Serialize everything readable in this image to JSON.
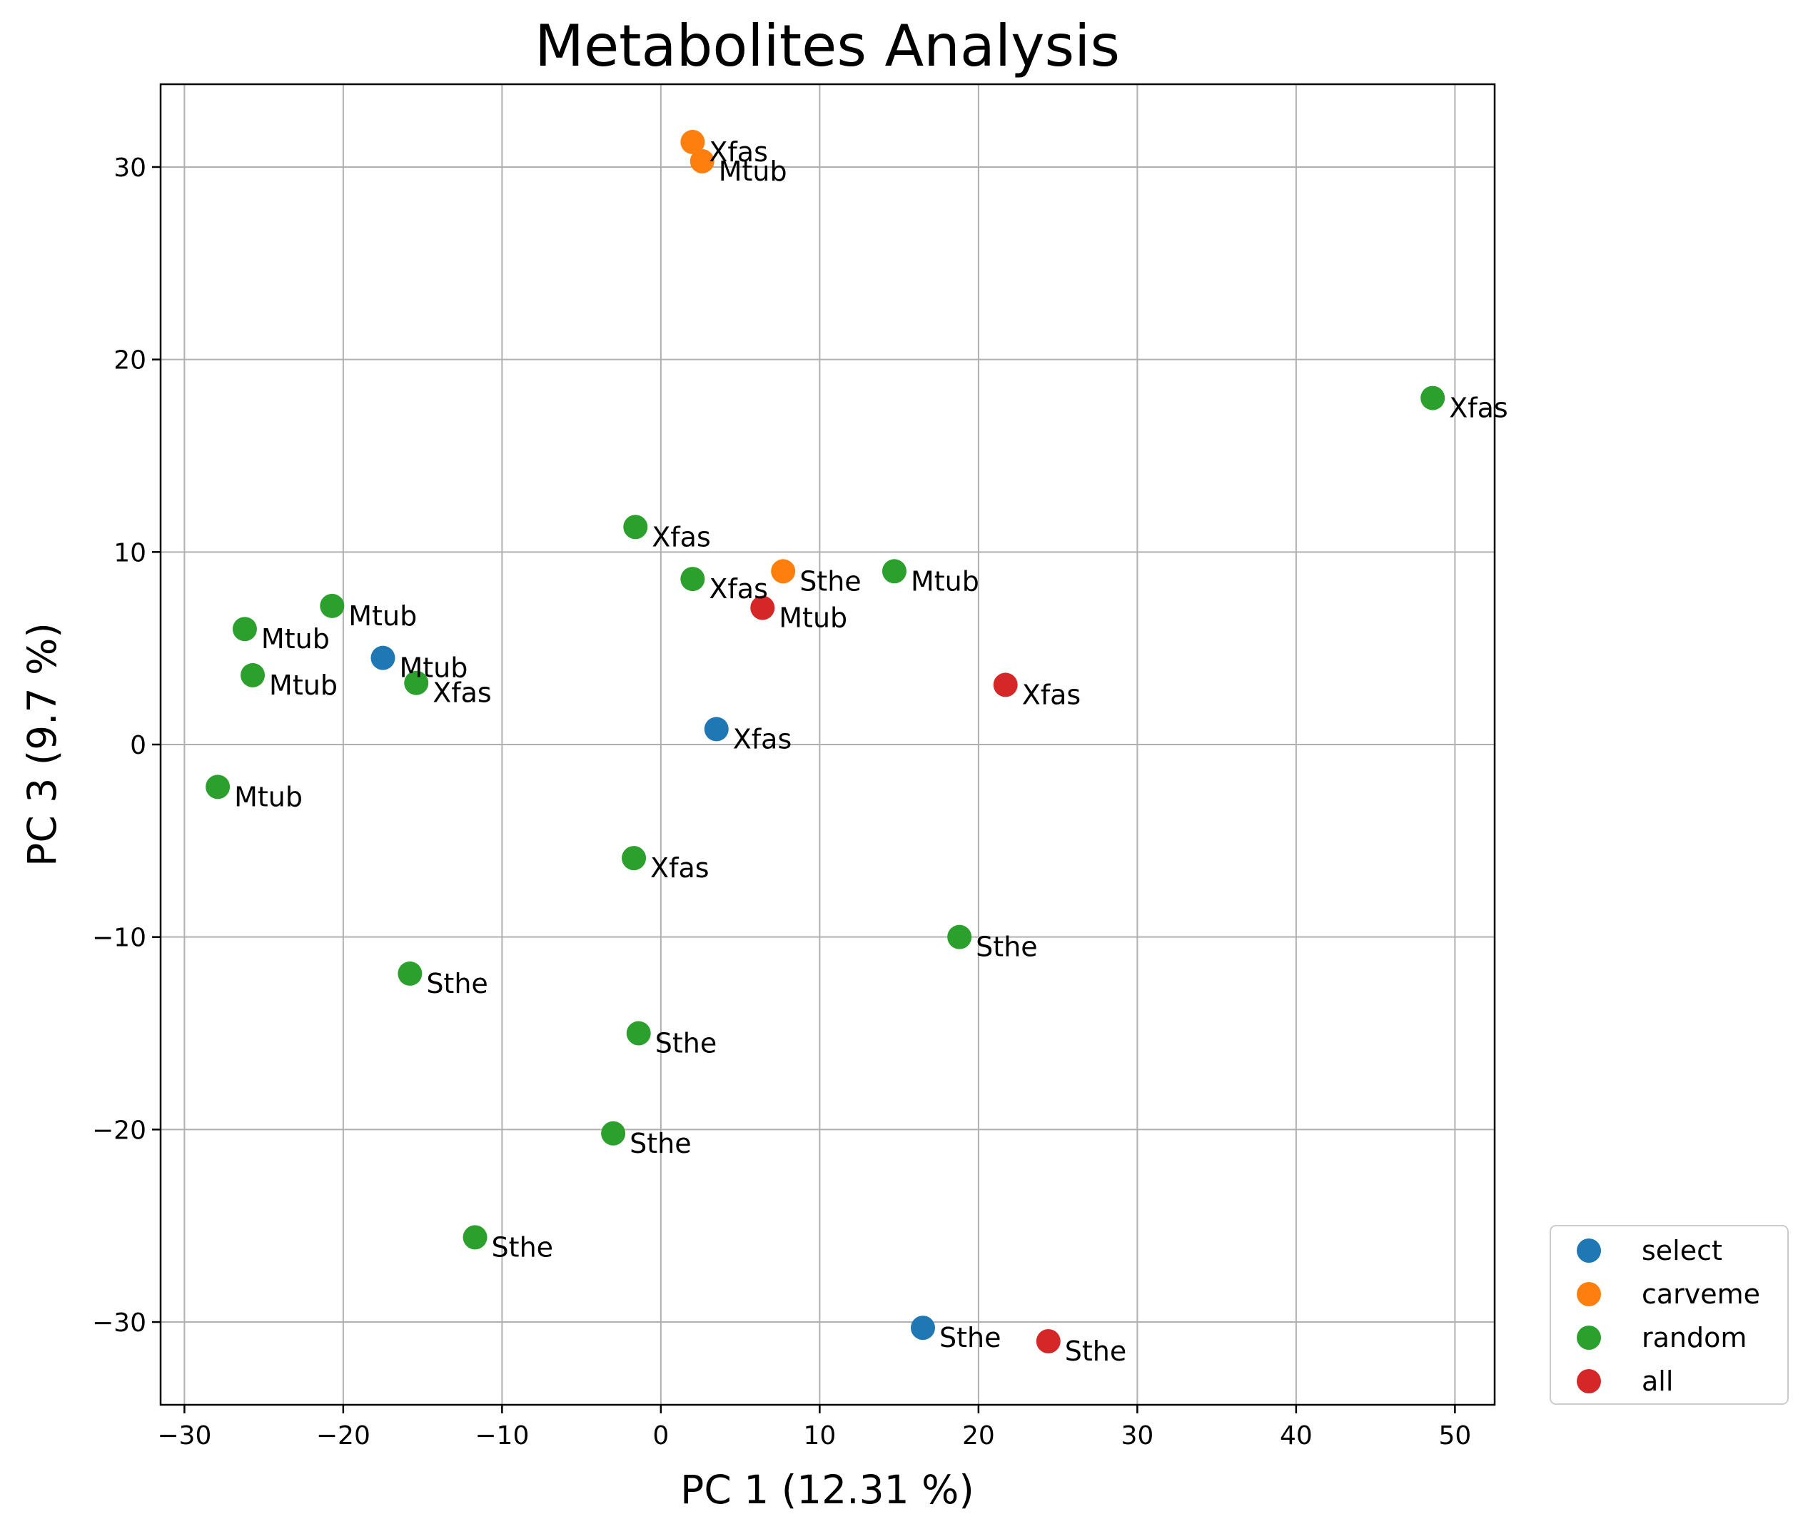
{
  "chart_data": {
    "type": "scatter",
    "title": "Metabolites Analysis",
    "xlabel": "PC 1 (12.31 %)",
    "ylabel": "PC 3 (9.7 %)",
    "xlim": [
      -31.5,
      52.5
    ],
    "ylim": [
      -34.3,
      34.3
    ],
    "xticks": [
      -30,
      -20,
      -10,
      0,
      10,
      20,
      30,
      40,
      50
    ],
    "yticks": [
      -30,
      -20,
      -10,
      0,
      10,
      20,
      30
    ],
    "xtick_labels": [
      "−30",
      "−20",
      "−10",
      "0",
      "10",
      "20",
      "30",
      "40",
      "50"
    ],
    "ytick_labels": [
      "−30",
      "−20",
      "−10",
      "0",
      "10",
      "20",
      "30"
    ],
    "grid": true,
    "legend_position": "outside-bottom-right",
    "series": [
      {
        "name": "select",
        "color": "#1f77b4",
        "points": [
          {
            "x": -17.5,
            "y": 4.5,
            "label": "Mtub"
          },
          {
            "x": 3.5,
            "y": 0.8,
            "label": "Xfas"
          },
          {
            "x": 16.5,
            "y": -30.3,
            "label": "Sthe"
          }
        ]
      },
      {
        "name": "carveme",
        "color": "#ff7f0e",
        "points": [
          {
            "x": 2.0,
            "y": 31.3,
            "label": "Xfas"
          },
          {
            "x": 2.6,
            "y": 30.3,
            "label": "Mtub"
          },
          {
            "x": 7.7,
            "y": 9.0,
            "label": "Sthe"
          }
        ]
      },
      {
        "name": "random",
        "color": "#2ca02c",
        "points": [
          {
            "x": 48.6,
            "y": 18.0,
            "label": "Xfas"
          },
          {
            "x": -1.6,
            "y": 11.3,
            "label": "Xfas"
          },
          {
            "x": 2.0,
            "y": 8.6,
            "label": "Xfas"
          },
          {
            "x": 14.7,
            "y": 9.0,
            "label": "Mtub"
          },
          {
            "x": -20.7,
            "y": 7.2,
            "label": "Mtub"
          },
          {
            "x": -26.2,
            "y": 6.0,
            "label": "Mtub"
          },
          {
            "x": -25.7,
            "y": 3.6,
            "label": "Mtub"
          },
          {
            "x": -15.4,
            "y": 3.2,
            "label": "Xfas"
          },
          {
            "x": -27.9,
            "y": -2.2,
            "label": "Mtub"
          },
          {
            "x": -1.7,
            "y": -5.9,
            "label": "Xfas"
          },
          {
            "x": 18.8,
            "y": -10.0,
            "label": "Sthe"
          },
          {
            "x": -15.8,
            "y": -11.9,
            "label": "Sthe"
          },
          {
            "x": -1.4,
            "y": -15.0,
            "label": "Sthe"
          },
          {
            "x": -3.0,
            "y": -20.2,
            "label": "Sthe"
          },
          {
            "x": -11.7,
            "y": -25.6,
            "label": "Sthe"
          }
        ]
      },
      {
        "name": "all",
        "color": "#d62728",
        "points": [
          {
            "x": 6.4,
            "y": 7.1,
            "label": "Mtub"
          },
          {
            "x": 21.7,
            "y": 3.1,
            "label": "Xfas"
          },
          {
            "x": 24.4,
            "y": -31.0,
            "label": "Sthe"
          }
        ]
      }
    ]
  }
}
